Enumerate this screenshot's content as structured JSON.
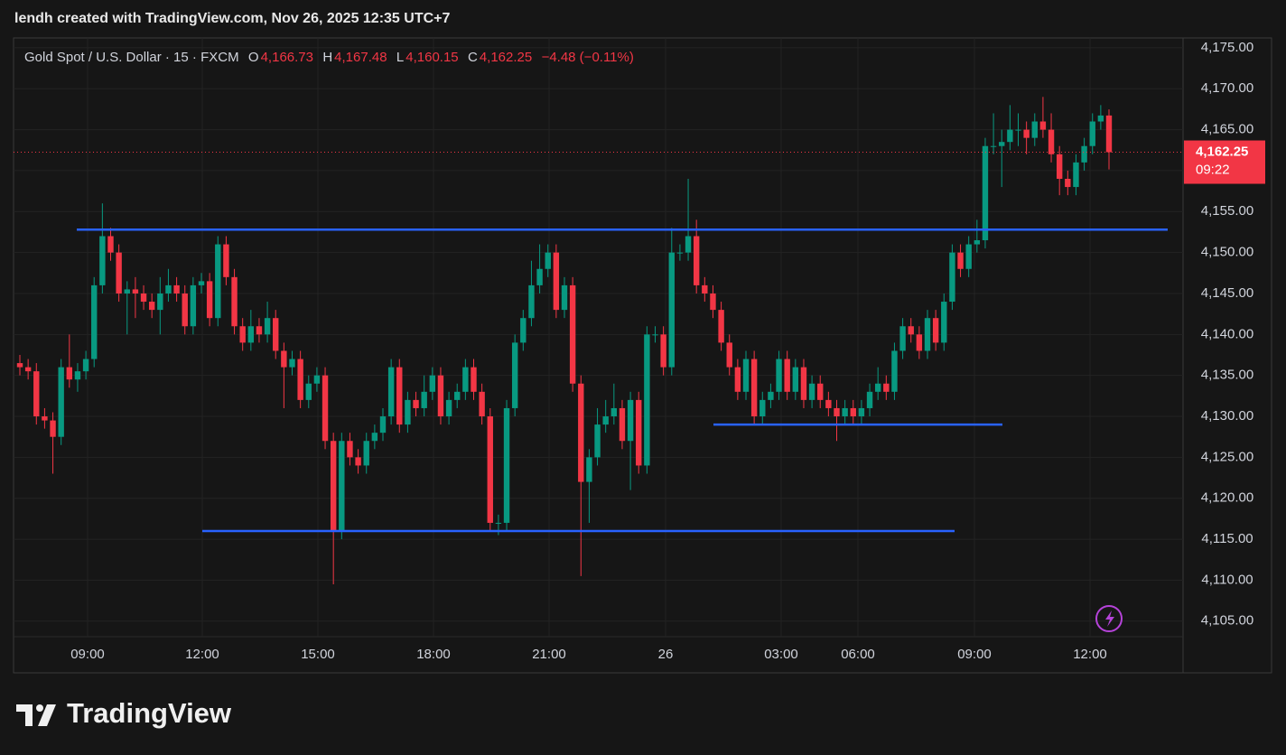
{
  "page_header": "lendh created with TradingView.com, Nov 26, 2025 12:35 UTC+7",
  "footer_brand": "TradingView",
  "chart_data": {
    "type": "candlestick",
    "legend": {
      "symbol": "Gold Spot / U.S. Dollar · 15 · FXCM",
      "o_key": "O",
      "o": "4,166.73",
      "h_key": "H",
      "h": "4,167.48",
      "l_key": "L",
      "l": "4,160.15",
      "c_key": "C",
      "c": "4,162.25",
      "change": "−4.48 (−0.11%)"
    },
    "up_color": "#089981",
    "down_color": "#f23645",
    "level_color": "#2962ff",
    "ylim": [
      4103.1,
      4176.2
    ],
    "yticks": [
      {
        "value": 4105,
        "label": "4,105.00"
      },
      {
        "value": 4110,
        "label": "4,110.00"
      },
      {
        "value": 4115,
        "label": "4,115.00"
      },
      {
        "value": 4120,
        "label": "4,120.00"
      },
      {
        "value": 4125,
        "label": "4,125.00"
      },
      {
        "value": 4130,
        "label": "4,130.00"
      },
      {
        "value": 4135,
        "label": "4,135.00"
      },
      {
        "value": 4140,
        "label": "4,140.00"
      },
      {
        "value": 4145,
        "label": "4,145.00"
      },
      {
        "value": 4150,
        "label": "4,150.00"
      },
      {
        "value": 4155,
        "label": "4,155.00"
      },
      {
        "value": 4160,
        "label": "4,160.00"
      },
      {
        "value": 4165,
        "label": "4,165.00"
      },
      {
        "value": 4170,
        "label": "4,170.00"
      },
      {
        "value": 4175,
        "label": "4,175.00"
      }
    ],
    "xticks": [
      "09:00",
      "12:00",
      "15:00",
      "18:00",
      "21:00",
      "26",
      "03:00",
      "06:00",
      "09:00",
      "12:00"
    ],
    "grid": true,
    "levels": [
      4152.8,
      4129,
      4116
    ],
    "last_price": 4162.25,
    "last_price_label": "4,162.25",
    "countdown": "09:22",
    "open": [
      4136.5,
      4136,
      4135.5,
      4130,
      4129.5,
      4127.5,
      4136,
      4134.5,
      4135.5,
      4137,
      4146,
      4152,
      4150,
      4145,
      4145.5,
      4145,
      4144,
      4143,
      4145,
      4146,
      4145,
      4141,
      4146,
      4146.5,
      4142,
      4151,
      4147,
      4141,
      4139,
      4141,
      4140,
      4142,
      4138,
      4136,
      4137,
      4132,
      4134,
      4135,
      4127,
      4116,
      4127,
      4125,
      4124,
      4127,
      4128,
      4130,
      4136,
      4129,
      4132,
      4131,
      4133,
      4135,
      4130,
      4132,
      4133,
      4136,
      4133,
      4130,
      4117,
      4117,
      4131,
      4139,
      4142,
      4146,
      4148,
      4150,
      4143,
      4146,
      4134,
      4122,
      4125,
      4129,
      4130,
      4131,
      4127,
      4132,
      4124,
      4140,
      4140,
      4136,
      4150,
      4150,
      4152,
      4146,
      4145,
      4143,
      4139,
      4136,
      4133,
      4137,
      4130,
      4132,
      4133,
      4137,
      4133,
      4136,
      4132,
      4134,
      4132,
      4131,
      4130,
      4131,
      4130,
      4131,
      4133,
      4134,
      4133,
      4138,
      4141,
      4140,
      4138,
      4142,
      4139,
      4144,
      4150,
      4148,
      4151,
      4151.5,
      4163,
      4163,
      4163.5,
      4165,
      4165,
      4164,
      4166,
      4165,
      4162,
      4159,
      4158,
      4161,
      4163,
      4166,
      4166.73
    ],
    "high": [
      4137.5,
      4137,
      4136.5,
      4131,
      4130.5,
      4137,
      4140,
      4136.5,
      4138,
      4147,
      4156,
      4153,
      4151,
      4146.5,
      4147,
      4146,
      4145,
      4147,
      4148,
      4147,
      4146,
      4147,
      4147.5,
      4147.5,
      4152,
      4152,
      4148,
      4142,
      4143,
      4142,
      4144,
      4143,
      4139,
      4138,
      4138,
      4135,
      4136,
      4136,
      4128,
      4128,
      4128,
      4126,
      4128,
      4129,
      4131,
      4137,
      4137,
      4133,
      4133,
      4135,
      4136,
      4136,
      4133,
      4134,
      4137,
      4137,
      4134,
      4131,
      4118,
      4132,
      4140,
      4143,
      4149,
      4151,
      4151,
      4151,
      4147,
      4147,
      4135,
      4126,
      4131,
      4132,
      4134,
      4132,
      4133,
      4133,
      4141,
      4141,
      4141,
      4153,
      4151,
      4159,
      4154,
      4147,
      4146,
      4144,
      4140,
      4137,
      4138,
      4138,
      4133,
      4134,
      4138,
      4138,
      4137,
      4137,
      4135,
      4135,
      4133,
      4132,
      4132,
      4132,
      4132,
      4134,
      4136,
      4135,
      4139,
      4142,
      4142,
      4141,
      4143,
      4143,
      4145,
      4151,
      4151,
      4152,
      4154,
      4164,
      4167,
      4165,
      4168,
      4167,
      4166,
      4167,
      4169,
      4167,
      4163,
      4160,
      4162,
      4164,
      4167,
      4168,
      4167.48
    ],
    "low": [
      4135,
      4134.5,
      4129,
      4128.5,
      4123,
      4126.5,
      4133.5,
      4133,
      4134.5,
      4136,
      4145,
      4149,
      4144,
      4140,
      4142,
      4143,
      4142,
      4140,
      4144,
      4144,
      4140,
      4140,
      4145,
      4141,
      4141,
      4146,
      4140,
      4138,
      4138,
      4139,
      4139,
      4137,
      4131,
      4135,
      4131,
      4131,
      4133,
      4126,
      4109.5,
      4115,
      4124,
      4123,
      4123,
      4126,
      4127,
      4129,
      4128,
      4128,
      4130,
      4130,
      4132,
      4129,
      4129,
      4131,
      4132,
      4132,
      4129,
      4116,
      4115.5,
      4116,
      4130,
      4138,
      4141,
      4145,
      4147,
      4142,
      4142,
      4133,
      4110.5,
      4117,
      4124,
      4128,
      4129,
      4126,
      4121,
      4123,
      4123,
      4139,
      4135,
      4135,
      4149,
      4149,
      4145,
      4144,
      4142,
      4138,
      4135,
      4132,
      4132,
      4129,
      4129,
      4131,
      4132,
      4132,
      4132,
      4131,
      4131,
      4131,
      4130,
      4127,
      4129,
      4129,
      4129,
      4130,
      4132,
      4132,
      4132,
      4137,
      4139,
      4137,
      4137,
      4138,
      4138,
      4143,
      4147,
      4147,
      4150,
      4150.5,
      4162,
      4158,
      4162.5,
      4163,
      4162,
      4163,
      4164,
      4161,
      4157,
      4157,
      4157,
      4160,
      4162,
      4165,
      4160.15
    ],
    "close": [
      4136,
      4135.5,
      4130,
      4129.5,
      4127.5,
      4136,
      4134.5,
      4135.5,
      4137,
      4146,
      4152,
      4150,
      4145,
      4145.5,
      4145,
      4144,
      4143,
      4145,
      4146,
      4145,
      4141,
      4146,
      4146.5,
      4142,
      4151,
      4147,
      4141,
      4139,
      4141,
      4140,
      4142,
      4138,
      4136,
      4137,
      4132,
      4134,
      4135,
      4127,
      4116,
      4127,
      4125,
      4124,
      4127,
      4128,
      4130,
      4136,
      4129,
      4132,
      4131,
      4133,
      4135,
      4130,
      4132,
      4133,
      4136,
      4133,
      4130,
      4117,
      4117,
      4131,
      4139,
      4142,
      4146,
      4148,
      4150,
      4143,
      4146,
      4134,
      4122,
      4125,
      4129,
      4130,
      4131,
      4127,
      4132,
      4124,
      4140,
      4140,
      4136,
      4150,
      4150,
      4152,
      4146,
      4145,
      4143,
      4139,
      4136,
      4133,
      4137,
      4130,
      4132,
      4133,
      4137,
      4133,
      4136,
      4132,
      4134,
      4132,
      4131,
      4130,
      4131,
      4130,
      4131,
      4133,
      4134,
      4133,
      4138,
      4141,
      4140,
      4138,
      4142,
      4139,
      4144,
      4150,
      4148,
      4151,
      4151.5,
      4163,
      4163,
      4163.5,
      4165,
      4165,
      4164,
      4166,
      4165,
      4162,
      4159,
      4158,
      4161,
      4163,
      4166,
      4166.73,
      4162.25
    ]
  }
}
